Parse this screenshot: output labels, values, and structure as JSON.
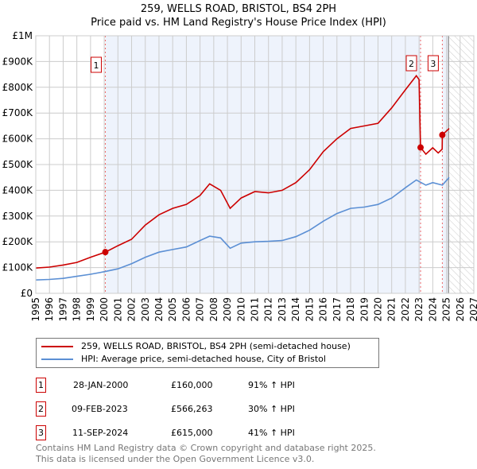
{
  "chart_data": {
    "type": "line",
    "title": "259, WELLS ROAD, BRISTOL, BS4 2PH",
    "subtitle": "Price paid vs. HM Land Registry's House Price Index (HPI)",
    "xlim": [
      1995,
      2027
    ],
    "ylim": [
      0,
      1000000
    ],
    "x_ticks": [
      "1995",
      "1996",
      "1997",
      "1998",
      "1999",
      "2000",
      "2001",
      "2002",
      "2003",
      "2004",
      "2005",
      "2006",
      "2007",
      "2008",
      "2009",
      "2010",
      "2011",
      "2012",
      "2013",
      "2014",
      "2015",
      "2016",
      "2017",
      "2018",
      "2019",
      "2020",
      "2021",
      "2022",
      "2023",
      "2024",
      "2025",
      "2026",
      "2027"
    ],
    "y_ticks": [
      {
        "v": 0,
        "label": "£0"
      },
      {
        "v": 100000,
        "label": "£100K"
      },
      {
        "v": 200000,
        "label": "£200K"
      },
      {
        "v": 300000,
        "label": "£300K"
      },
      {
        "v": 400000,
        "label": "£400K"
      },
      {
        "v": 500000,
        "label": "£500K"
      },
      {
        "v": 600000,
        "label": "£600K"
      },
      {
        "v": 700000,
        "label": "£700K"
      },
      {
        "v": 800000,
        "label": "£800K"
      },
      {
        "v": 900000,
        "label": "£900K"
      },
      {
        "v": 1000000,
        "label": "£1M"
      }
    ],
    "grid": true,
    "forecast_start": 2025.15,
    "series": [
      {
        "name": "259, WELLS ROAD, BRISTOL, BS4 2PH (semi-detached house)",
        "color": "#cc0000",
        "x": [
          1995,
          1996,
          1997,
          1998,
          1999,
          2000.08,
          2001,
          2002,
          2003,
          2004,
          2005,
          2006,
          2007,
          2007.7,
          2008.5,
          2009.2,
          2010,
          2011,
          2012,
          2013,
          2014,
          2015,
          2016,
          2017,
          2018,
          2019,
          2020,
          2021,
          2022,
          2022.8,
          2023.0,
          2023.11,
          2023.5,
          2024,
          2024.4,
          2024.69,
          2024.7,
          2025.2
        ],
        "y": [
          98000,
          102000,
          110000,
          120000,
          140000,
          160000,
          185000,
          210000,
          265000,
          305000,
          330000,
          345000,
          380000,
          425000,
          400000,
          330000,
          370000,
          395000,
          390000,
          400000,
          430000,
          480000,
          550000,
          600000,
          640000,
          650000,
          660000,
          720000,
          790000,
          845000,
          830000,
          566263,
          540000,
          565000,
          545000,
          560000,
          615000,
          640000
        ]
      },
      {
        "name": "HPI: Average price, semi-detached house, City of Bristol",
        "color": "#5b8fd4",
        "x": [
          1995,
          1996,
          1997,
          1998,
          1999,
          2000,
          2001,
          2002,
          2003,
          2004,
          2005,
          2006,
          2007,
          2007.7,
          2008.5,
          2009.2,
          2010,
          2011,
          2012,
          2013,
          2014,
          2015,
          2016,
          2017,
          2018,
          2019,
          2020,
          2021,
          2022,
          2022.8,
          2023.5,
          2024,
          2024.7,
          2025.2
        ],
        "y": [
          52000,
          54000,
          58000,
          66000,
          74000,
          84000,
          95000,
          115000,
          140000,
          160000,
          170000,
          180000,
          205000,
          222000,
          215000,
          175000,
          195000,
          200000,
          202000,
          205000,
          220000,
          245000,
          280000,
          310000,
          330000,
          335000,
          345000,
          370000,
          410000,
          440000,
          420000,
          430000,
          420000,
          450000
        ]
      }
    ],
    "sales": [
      {
        "id": "1",
        "x": 2000.08,
        "y": 160000,
        "date": "28-JAN-2000",
        "price": "£160,000",
        "hpi": "91% ↑ HPI"
      },
      {
        "id": "2",
        "x": 2023.11,
        "y": 566263,
        "date": "09-FEB-2023",
        "price": "£566,263",
        "hpi": "30% ↑ HPI"
      },
      {
        "id": "3",
        "x": 2024.7,
        "y": 615000,
        "date": "11-SEP-2024",
        "price": "£615,000",
        "hpi": "41% ↑ HPI"
      }
    ]
  },
  "footer": {
    "line1": "Contains HM Land Registry data © Crown copyright and database right 2025.",
    "line2": "This data is licensed under the Open Government Licence v3.0."
  }
}
